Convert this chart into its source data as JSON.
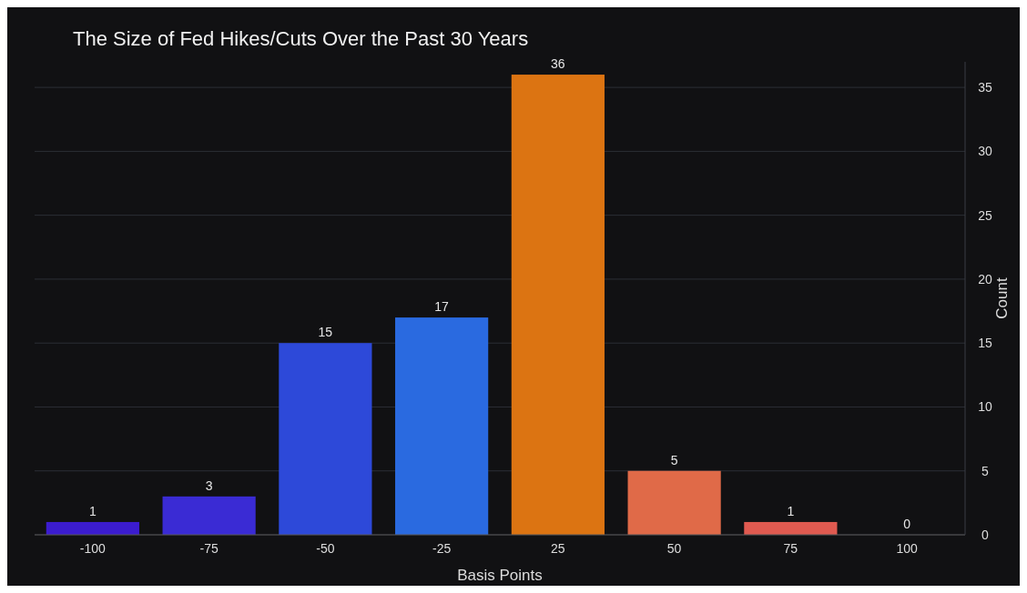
{
  "chart_data": {
    "type": "bar",
    "title": "The Size of Fed Hikes/Cuts Over the Past 30 Years",
    "xlabel": "Basis Points",
    "ylabel": "Count",
    "categories": [
      "-100",
      "-75",
      "-50",
      "-25",
      "25",
      "50",
      "75",
      "100"
    ],
    "values": [
      1,
      3,
      15,
      17,
      36,
      5,
      1,
      0
    ],
    "colors": [
      "#3b1ccf",
      "#3a2bd4",
      "#2d49d9",
      "#2a6ae0",
      "#dc7412",
      "#e06a48",
      "#e05a50",
      "#e04848"
    ],
    "ylim": [
      0,
      37
    ],
    "yticks": [
      0,
      5,
      10,
      15,
      20,
      25,
      30,
      35
    ],
    "grid": "y",
    "data_labels": true
  }
}
